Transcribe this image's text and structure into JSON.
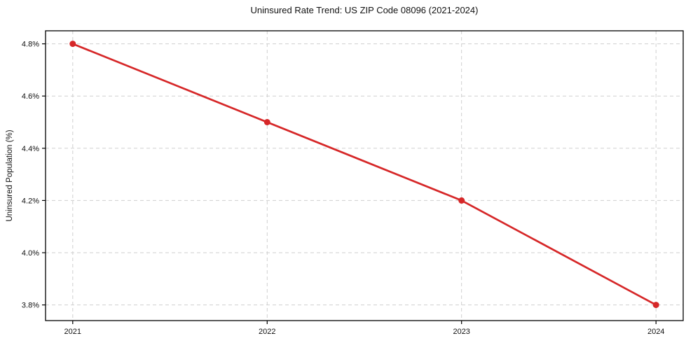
{
  "figure": {
    "title": "Uninsured Rate Trend: US ZIP Code 08096 (2021-2024)"
  },
  "chart_data": {
    "type": "line",
    "title": "Uninsured Rate Trend: US ZIP Code 08096 (2021-2024)",
    "xlabel": "",
    "ylabel": "Uninsured Population (%)",
    "x": [
      2021,
      2022,
      2023,
      2024
    ],
    "categories": [
      "2021",
      "2022",
      "2023",
      "2024"
    ],
    "series": [
      {
        "name": "Uninsured Population (%)",
        "values": [
          4.8,
          4.5,
          4.2,
          3.8
        ],
        "color": "#d62728",
        "marker": "circle"
      }
    ],
    "yticks": [
      3.8,
      4.0,
      4.2,
      4.4,
      4.6,
      4.8
    ],
    "ytick_labels": [
      "3.8%",
      "4.0%",
      "4.2%",
      "4.4%",
      "4.6%",
      "4.8%"
    ],
    "xlim": [
      2020.86,
      2024.14
    ],
    "ylim": [
      3.74,
      4.85
    ],
    "grid": true,
    "grid_style": "dashed",
    "grid_color": "#cfcfcf",
    "legend_position": "none",
    "background": "#ffffff"
  }
}
